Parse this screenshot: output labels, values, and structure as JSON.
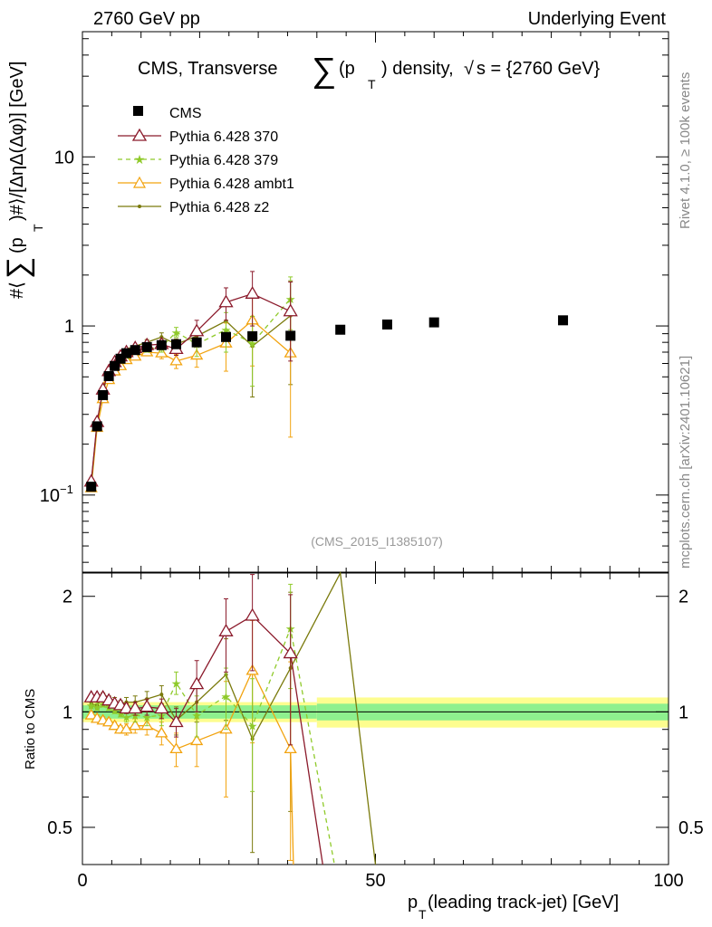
{
  "header": {
    "left": "2760 GeV pp",
    "right": "Underlying Event"
  },
  "side_labels": {
    "rivet": "Rivet 4.1.0, ≥ 100k events",
    "mcplots": "mcplots.cern.ch [arXiv:2401.10621]"
  },
  "chart_data": {
    "type": "scatter",
    "title": "CMS, Transverse ∑(pₜ) density, √s = {2760 GeV}",
    "title_parts": {
      "prefix": "CMS, Transverse",
      "sum": "∑",
      "p": "(p",
      "sub": "T",
      "close": ") density,",
      "sqrt": "√",
      "s_eq": "s = {2760 GeV}"
    },
    "analysis_label": "(CMS_2015_I1385107)",
    "xlabel": "p_T (leading track-jet) [GeV]",
    "xlabel_parts": {
      "p": "p",
      "sub": "T",
      "rest": " (leading track-jet) [GeV]"
    },
    "ylabel": "#⟨∑(p_T)#⟩/[ΔηΔ(Δφ)] [GeV]",
    "ylabel_parts": {
      "pre": "#⟨",
      "sum": "∑",
      "p": "(p",
      "sub": "T",
      "post": ")#⟩/[ΔηΔ(Δφ)] [GeV]"
    },
    "xlim": [
      0,
      100
    ],
    "ylim": [
      0.035,
      55
    ],
    "yscale": "log",
    "x_ticks": [
      0,
      50,
      100
    ],
    "x_tick_labels": [
      "0",
      "50",
      "100"
    ],
    "y_ticks": [
      0.1,
      1,
      10
    ],
    "y_tick_labels": [
      {
        "base": "10",
        "exp": "−1"
      },
      {
        "base": "1",
        "exp": ""
      },
      {
        "base": "10",
        "exp": ""
      }
    ],
    "legend": [
      "CMS",
      "Pythia 6.428 370",
      "Pythia 6.428 379",
      "Pythia 6.428 ambt1",
      "Pythia 6.428 z2"
    ],
    "legend_position": "top-left",
    "series": [
      {
        "name": "CMS",
        "color": "#000000",
        "marker": "square",
        "x": [
          1.5,
          2.5,
          3.5,
          4.5,
          5.5,
          6.5,
          7.5,
          9,
          11,
          13.5,
          16,
          19.5,
          24.5,
          29,
          35.5,
          44,
          52,
          60,
          82
        ],
        "values": [
          0.112,
          0.255,
          0.39,
          0.505,
          0.58,
          0.64,
          0.69,
          0.72,
          0.75,
          0.77,
          0.78,
          0.8,
          0.86,
          0.87,
          0.875,
          0.95,
          1.02,
          1.05,
          1.08
        ]
      },
      {
        "name": "Pythia 6.428 370",
        "color": "#8b1a2b",
        "marker": "open-triangle",
        "dash": "",
        "x": [
          1.5,
          2.5,
          3.5,
          4.5,
          5.5,
          6.5,
          7.5,
          9,
          11,
          13.5,
          16,
          19.5,
          24.5,
          29,
          35.5
        ],
        "values": [
          0.12,
          0.27,
          0.42,
          0.54,
          0.61,
          0.66,
          0.7,
          0.74,
          0.77,
          0.78,
          0.73,
          0.93,
          1.38,
          1.55,
          1.22
        ],
        "errors": [
          0.003,
          0.006,
          0.01,
          0.01,
          0.012,
          0.012,
          0.014,
          0.02,
          0.03,
          0.05,
          0.06,
          0.15,
          0.3,
          0.55,
          0.6
        ]
      },
      {
        "name": "Pythia 6.428 379",
        "color": "#8fca2a",
        "marker": "star",
        "dash": "5,4",
        "x": [
          1.5,
          2.5,
          3.5,
          4.5,
          5.5,
          6.5,
          7.5,
          9,
          11,
          13.5,
          16,
          19.5,
          24.5,
          29,
          35.5
        ],
        "values": [
          0.115,
          0.26,
          0.41,
          0.52,
          0.59,
          0.63,
          0.67,
          0.71,
          0.73,
          0.75,
          0.92,
          0.78,
          0.95,
          0.79,
          1.45
        ],
        "errors": [
          0.003,
          0.006,
          0.01,
          0.01,
          0.012,
          0.012,
          0.014,
          0.02,
          0.03,
          0.05,
          0.06,
          0.12,
          0.25,
          0.35,
          0.5
        ]
      },
      {
        "name": "Pythia 6.428 ambt1",
        "color": "#f2a30f",
        "marker": "open-triangle",
        "dash": "",
        "x": [
          1.5,
          2.5,
          3.5,
          4.5,
          5.5,
          6.5,
          7.5,
          9,
          11,
          13.5,
          16,
          19.5,
          24.5,
          29,
          35.5
        ],
        "values": [
          0.11,
          0.25,
          0.37,
          0.48,
          0.54,
          0.58,
          0.63,
          0.66,
          0.7,
          0.69,
          0.62,
          0.67,
          0.79,
          1.08,
          0.69
        ],
        "errors": [
          0.003,
          0.006,
          0.01,
          0.01,
          0.012,
          0.012,
          0.014,
          0.02,
          0.03,
          0.05,
          0.06,
          0.1,
          0.25,
          0.5,
          0.47
        ]
      },
      {
        "name": "Pythia 6.428 z2",
        "color": "#7a7a0c",
        "marker": "dot",
        "dash": "",
        "x": [
          1.5,
          2.5,
          3.5,
          4.5,
          5.5,
          6.5,
          7.5,
          9,
          11,
          13.5,
          16,
          19.5,
          24.5,
          29,
          35.5
        ],
        "values": [
          0.117,
          0.265,
          0.43,
          0.55,
          0.62,
          0.67,
          0.73,
          0.76,
          0.8,
          0.86,
          0.78,
          0.87,
          1.07,
          0.76,
          1.15
        ],
        "errors": [
          0.003,
          0.006,
          0.01,
          0.01,
          0.012,
          0.012,
          0.014,
          0.02,
          0.03,
          0.05,
          0.06,
          0.1,
          0.25,
          0.38,
          0.7
        ]
      }
    ],
    "ratio_panel": {
      "ylabel": "Ratio to CMS",
      "ylim": [
        0.4,
        2.3
      ],
      "yscale": "log",
      "y_ticks": [
        0.5,
        1,
        2
      ],
      "y_tick_labels": [
        "0.5",
        "1",
        "2"
      ],
      "reference_line": 1,
      "bands": {
        "inner_color": "#8ef08e",
        "outer_color": "#fdfd8f",
        "segments": [
          {
            "x0": 0,
            "x1": 40,
            "inner": [
              0.96,
              1.04
            ],
            "outer": [
              0.94,
              1.06
            ]
          },
          {
            "x0": 40,
            "x1": 100,
            "inner": [
              0.95,
              1.05
            ],
            "outer": [
              0.91,
              1.09
            ]
          }
        ]
      },
      "series": [
        {
          "name": "Pythia 6.428 370",
          "x": [
            1.5,
            2.5,
            3.5,
            4.5,
            5.5,
            6.5,
            7.5,
            9,
            11,
            13.5,
            16,
            19.5,
            24.5,
            29,
            35.5,
            41
          ],
          "values": [
            1.09,
            1.09,
            1.09,
            1.07,
            1.05,
            1.04,
            1.02,
            1.02,
            1.03,
            1.02,
            0.94,
            1.18,
            1.62,
            1.78,
            1.42,
            0.3
          ],
          "errors": [
            0.02,
            0.02,
            0.02,
            0.02,
            0.02,
            0.02,
            0.03,
            0.04,
            0.05,
            0.06,
            0.08,
            0.18,
            0.35,
            0.5,
            0.6,
            0
          ]
        },
        {
          "name": "Pythia 6.428 379",
          "x": [
            1.5,
            2.5,
            3.5,
            4.5,
            5.5,
            6.5,
            7.5,
            9,
            11,
            13.5,
            16,
            19.5,
            24.5,
            29,
            35.5,
            43
          ],
          "values": [
            1.04,
            1.03,
            1.05,
            1.03,
            1.01,
            0.99,
            0.97,
            0.98,
            0.97,
            0.98,
            1.19,
            0.98,
            1.1,
            0.92,
            1.65,
            0.3
          ],
          "errors": [
            0.02,
            0.02,
            0.02,
            0.02,
            0.02,
            0.02,
            0.03,
            0.04,
            0.05,
            0.06,
            0.08,
            0.12,
            0.2,
            0.3,
            0.5,
            0
          ]
        },
        {
          "name": "Pythia 6.428 ambt1",
          "x": [
            1.5,
            2.5,
            3.5,
            4.5,
            5.5,
            6.5,
            7.5,
            9,
            11,
            13.5,
            16,
            19.5,
            24.5,
            29,
            35.5,
            36
          ],
          "values": [
            0.98,
            0.96,
            0.95,
            0.94,
            0.92,
            0.9,
            0.9,
            0.92,
            0.92,
            0.88,
            0.8,
            0.84,
            0.9,
            1.28,
            0.8,
            0.3
          ],
          "errors": [
            0.02,
            0.02,
            0.02,
            0.02,
            0.02,
            0.02,
            0.03,
            0.04,
            0.05,
            0.06,
            0.08,
            0.12,
            0.3,
            0.45,
            0.55,
            0
          ]
        },
        {
          "name": "Pythia 6.428 z2",
          "x": [
            1.5,
            2.5,
            3.5,
            4.5,
            5.5,
            6.5,
            7.5,
            9,
            11,
            13.5,
            16,
            19.5,
            24.5,
            29,
            35.5,
            44,
            50
          ],
          "values": [
            1.05,
            1.04,
            1.1,
            1.08,
            1.07,
            1.05,
            1.06,
            1.06,
            1.08,
            1.11,
            0.95,
            1.06,
            1.25,
            0.85,
            1.3,
            2.3,
            0.3
          ],
          "errors": [
            0.02,
            0.02,
            0.02,
            0.02,
            0.02,
            0.02,
            0.03,
            0.04,
            0.05,
            0.06,
            0.08,
            0.12,
            0.3,
            0.42,
            0.75,
            0,
            0
          ]
        }
      ]
    }
  }
}
